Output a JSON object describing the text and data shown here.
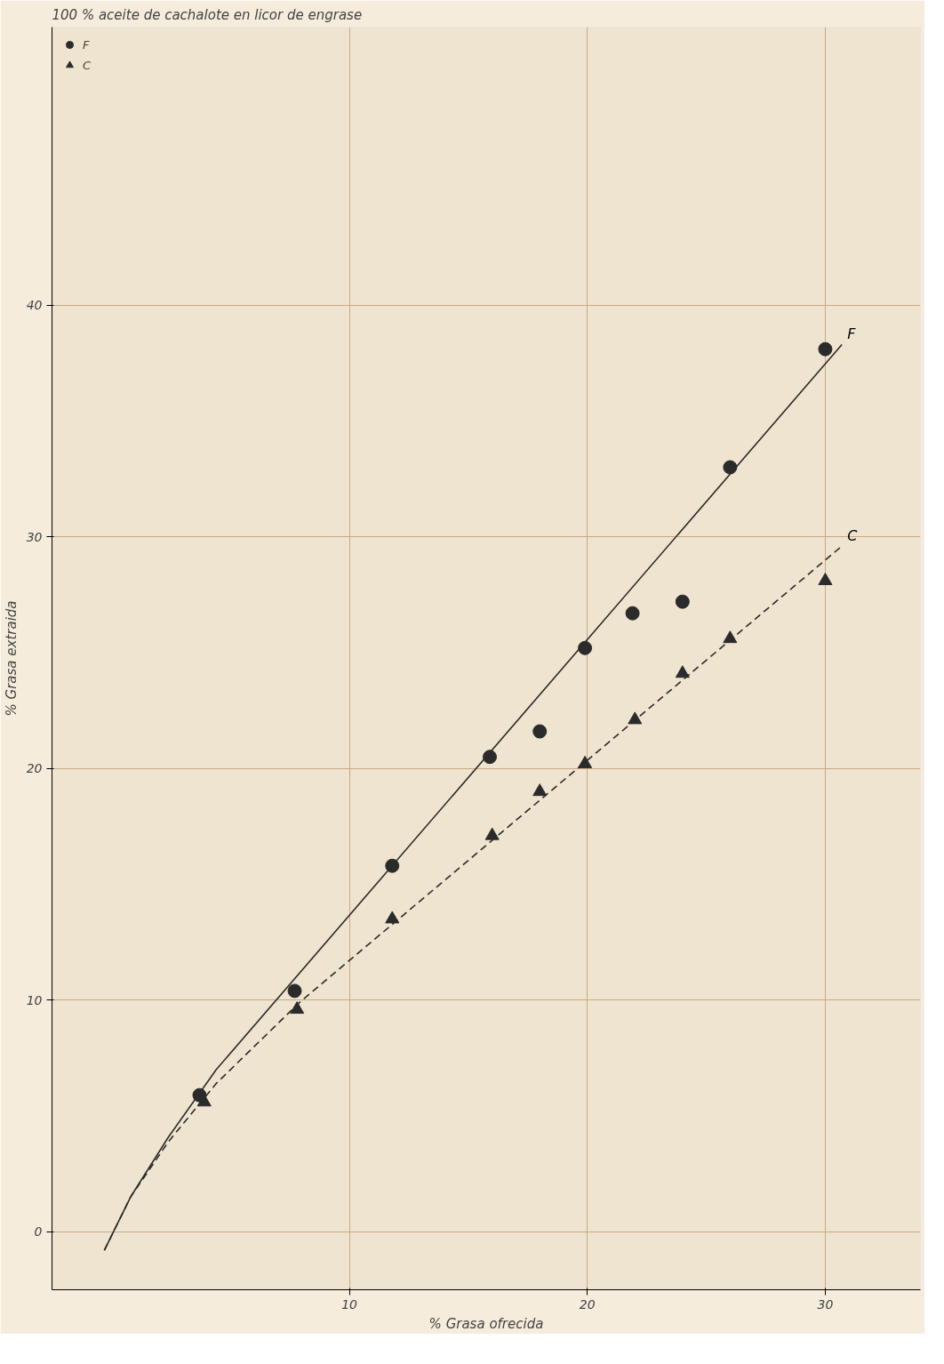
{
  "chart_data": {
    "type": "scatter",
    "title": "100 % aceite de cachalote en licor de engrase",
    "xlabel": "% Grasa ofrecida",
    "ylabel": "% Grasa extraida",
    "xlim": [
      -2.5,
      34
    ],
    "ylim": [
      -2.5,
      52
    ],
    "xticks": [
      10,
      20,
      30
    ],
    "yticks": [
      0,
      10,
      20,
      30,
      40
    ],
    "grid": true,
    "legend": "top left",
    "series": [
      {
        "name": "F",
        "marker": "circle",
        "color": "#2b2b2b",
        "x": [
          3.7,
          7.7,
          11.8,
          15.9,
          18.0,
          19.9,
          21.9,
          24.0,
          26.0,
          30.0
        ],
        "values": [
          5.9,
          10.4,
          15.8,
          20.5,
          21.6,
          25.2,
          26.7,
          27.2,
          33.0,
          38.1
        ]
      },
      {
        "name": "C",
        "marker": "triangle",
        "color": "#2b2b2b",
        "x": [
          3.9,
          7.8,
          11.8,
          16.0,
          18.0,
          19.9,
          22.0,
          24.0,
          26.0,
          30.0
        ],
        "values": [
          5.6,
          9.6,
          13.5,
          17.1,
          19.0,
          20.2,
          22.1,
          24.1,
          25.6,
          28.1
        ]
      },
      {
        "name": "F",
        "type": "line",
        "line_style": "solid",
        "color": "#2b2b2b",
        "x": [
          -0.3,
          0.8,
          2.4,
          4.4,
          30.7
        ],
        "values": [
          -0.8,
          1.5,
          4.1,
          7.0,
          38.3
        ]
      },
      {
        "name": "C",
        "type": "line",
        "line_style": "dashed",
        "color": "#2b2b2b",
        "x": [
          -0.3,
          0.8,
          2.4,
          4.4,
          7.9,
          30.7
        ],
        "values": [
          -0.8,
          1.5,
          3.9,
          6.4,
          9.9,
          29.6
        ]
      }
    ]
  }
}
